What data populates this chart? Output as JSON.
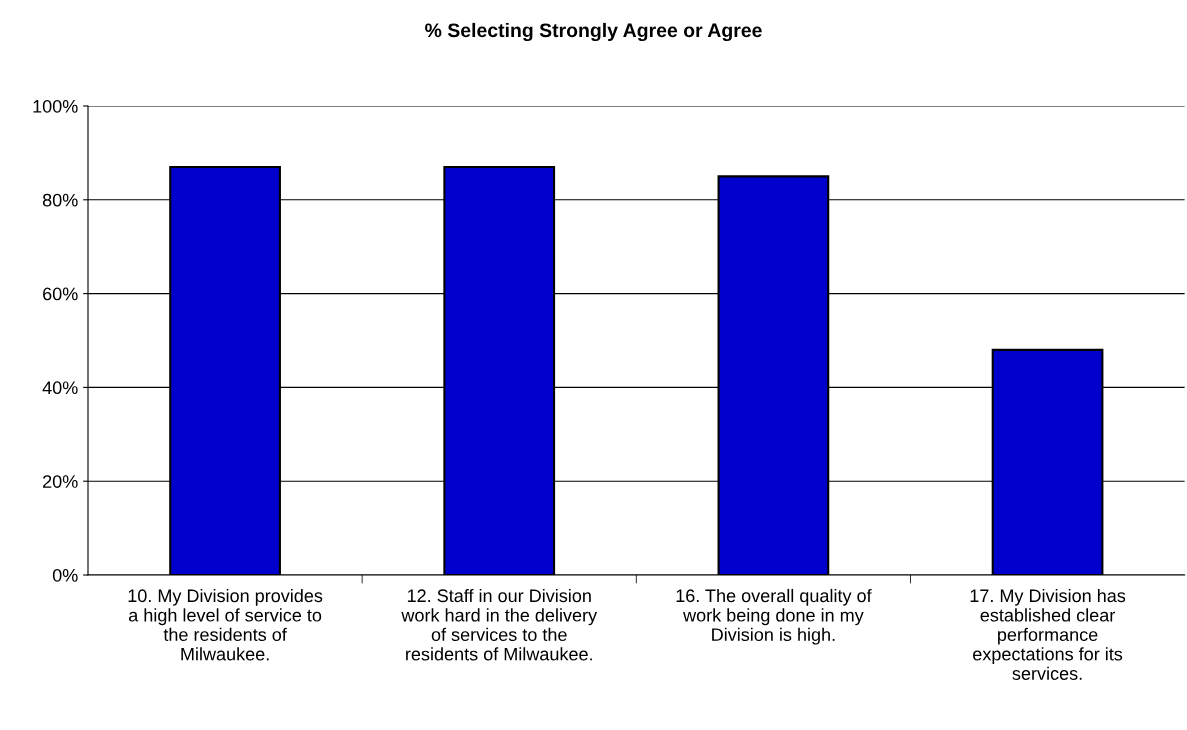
{
  "chart_data": {
    "type": "bar",
    "title": "% Selecting Strongly Agree or Agree",
    "categories": [
      "10. My Division provides\na high level of service to\nthe residents of\nMilwaukee.",
      "12. Staff in our Division\nwork hard in the delivery\nof services to the\nresidents of Milwaukee.",
      "16. The overall quality of\nwork being done in my\nDivision is high.",
      "17. My Division has\nestablished clear\nperformance\nexpectations for its\nservices."
    ],
    "values": [
      87,
      87,
      85,
      48
    ],
    "color": "#0000cc",
    "ylim": [
      0,
      100
    ],
    "yticks": [
      {
        "value": 0,
        "label": "0%"
      },
      {
        "value": 20,
        "label": "20%"
      },
      {
        "value": 40,
        "label": "40%"
      },
      {
        "value": 60,
        "label": "60%"
      },
      {
        "value": 80,
        "label": "80%"
      },
      {
        "value": 100,
        "label": "100%"
      }
    ],
    "grid": "y"
  }
}
